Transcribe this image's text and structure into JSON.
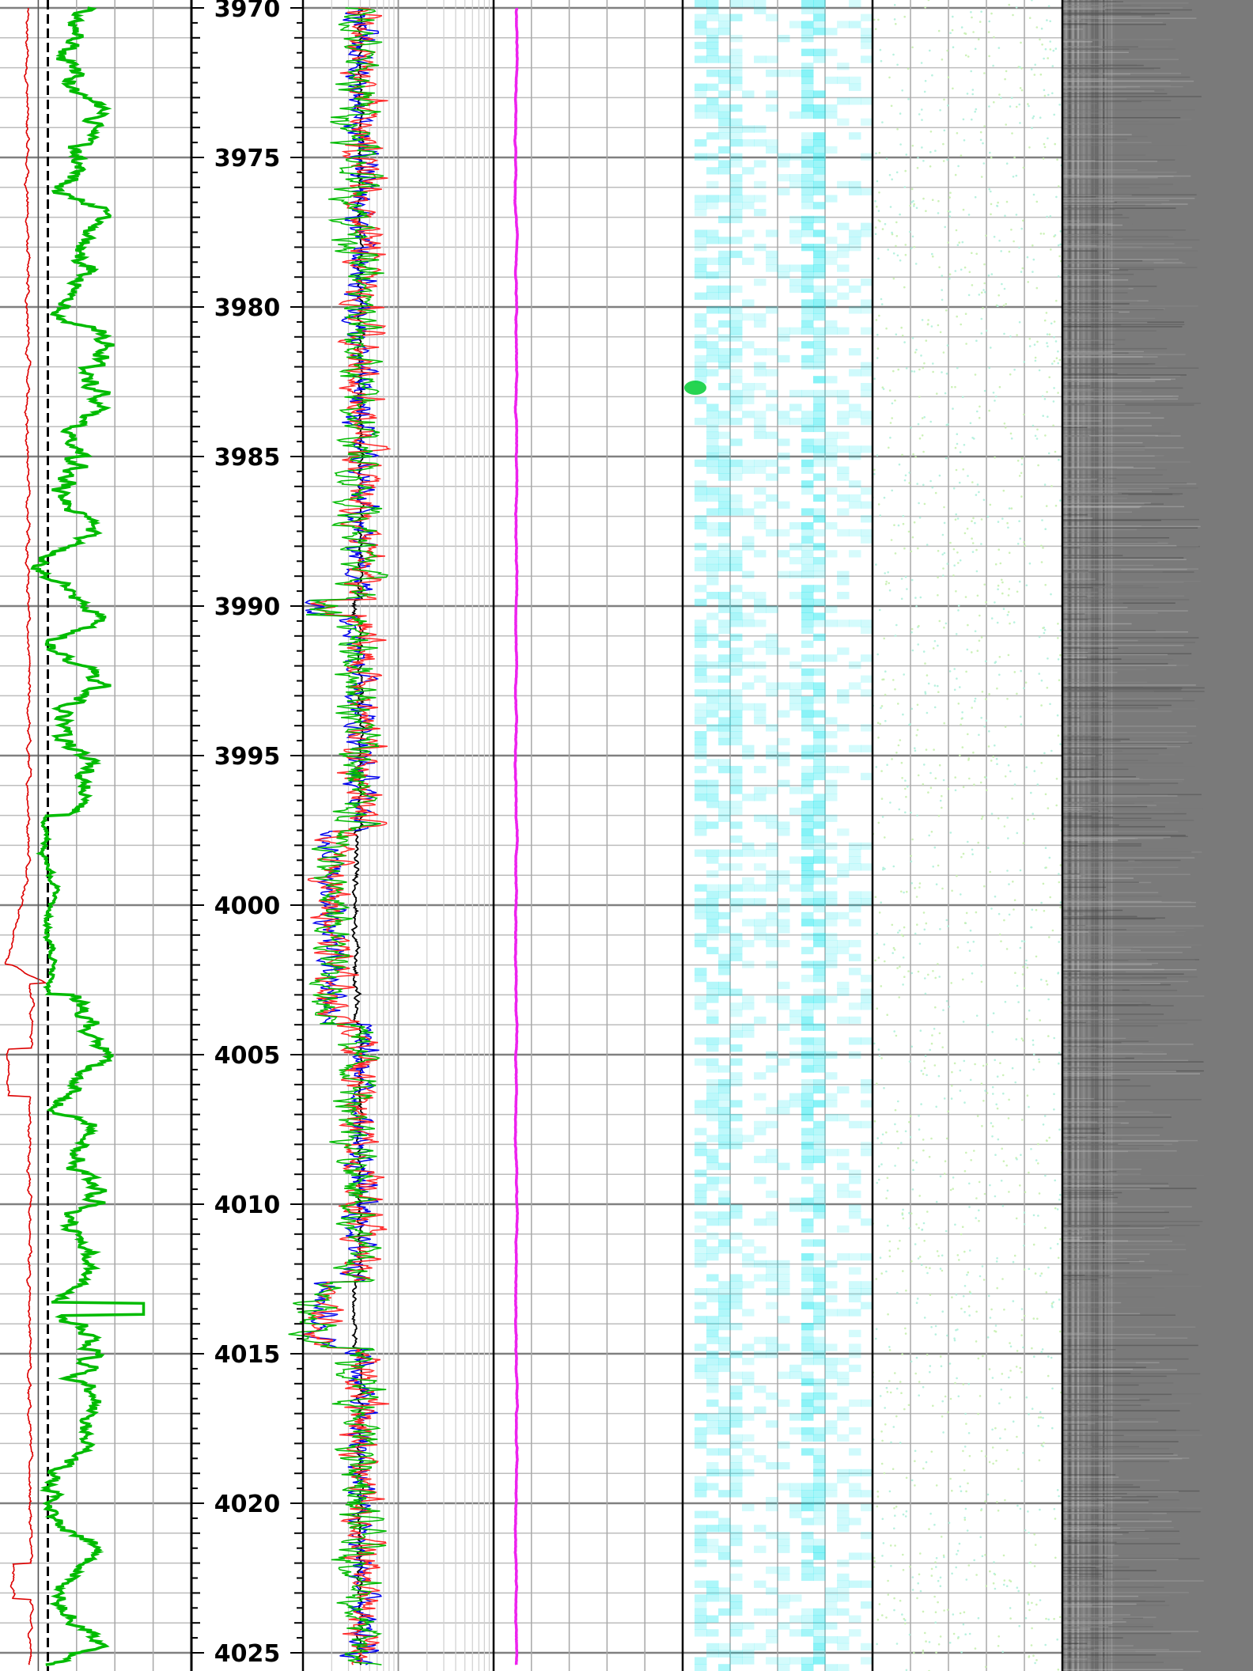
{
  "chart_data": {
    "type": "line",
    "title": "",
    "depth_axis": {
      "ylim": [
        3970,
        4025.4
      ],
      "major_step": 5,
      "tick_labels": [
        "3970",
        "3975",
        "3980",
        "3985",
        "3990",
        "3995",
        "4000",
        "4005",
        "4010",
        "4015",
        "4020",
        "4025"
      ],
      "inverted": true
    },
    "tracks": [
      {
        "id": "track1",
        "scale": "linear",
        "grid_divisions": 5,
        "series": [
          {
            "color": "#dd0000",
            "style": "thin"
          },
          {
            "color": "#00bb00",
            "style": "thick"
          },
          {
            "color": "#000000",
            "style": "dashed",
            "constant": 0.25
          }
        ]
      },
      {
        "id": "track2",
        "scale": "log",
        "grid_decades": 2,
        "series": [
          {
            "color": "#000000"
          },
          {
            "color": "#0000ee"
          },
          {
            "color": "#ff2a2a"
          },
          {
            "color": "#00bb00"
          }
        ]
      },
      {
        "id": "track3",
        "scale": "linear",
        "grid_divisions": 5,
        "series": [
          {
            "color": "#ee22ee",
            "style": "thick"
          }
        ]
      },
      {
        "id": "track4",
        "scale": "linear",
        "grid_divisions": 4,
        "image": {
          "type": "heatmap",
          "colors": [
            "#ffffff",
            "#00e5ee",
            "#00cc33"
          ]
        }
      },
      {
        "id": "track5",
        "scale": "linear",
        "grid_divisions": 5,
        "image": {
          "type": "points",
          "colors": [
            "#b0f0dc",
            "#c8f0b0"
          ]
        }
      },
      {
        "id": "track6",
        "image": {
          "type": "grayscale-image"
        }
      }
    ],
    "grid": true,
    "legend": "none"
  }
}
